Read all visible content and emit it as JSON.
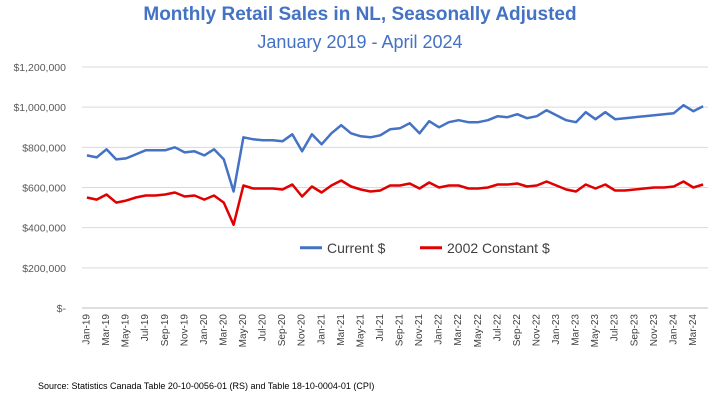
{
  "chart_data": {
    "type": "line",
    "title": "Monthly Retail Sales in NL, Seasonally Adjusted",
    "subtitle": "January 2019 - April 2024",
    "xlabel": "",
    "ylabel": "",
    "ylim": [
      0,
      1200000
    ],
    "yticks": [
      "$-",
      "$200,000",
      "$400,000",
      "$600,000",
      "$800,000",
      "$1,000,000",
      "$1,200,000"
    ],
    "xtick_labels": [
      "Jan-19",
      "Mar-19",
      "May-19",
      "Jul-19",
      "Sep-19",
      "Nov-19",
      "Jan-20",
      "Mar-20",
      "May-20",
      "Jul-20",
      "Sep-20",
      "Nov-20",
      "Jan-21",
      "Mar-21",
      "May-21",
      "Jul-21",
      "Sep-21",
      "Nov-21",
      "Jan-22",
      "Mar-22",
      "May-22",
      "Jul-22",
      "Sep-22",
      "Nov-22",
      "Jan-23",
      "Mar-23",
      "May-23",
      "Jul-23",
      "Sep-23",
      "Nov-23",
      "Jan-24",
      "Mar-24"
    ],
    "grid": true,
    "legend_position": "center",
    "series": [
      {
        "name": "Current $",
        "color": "#4472C4",
        "values": [
          760000,
          750000,
          790000,
          740000,
          745000,
          765000,
          785000,
          785000,
          785000,
          800000,
          775000,
          780000,
          760000,
          790000,
          740000,
          580000,
          850000,
          840000,
          835000,
          835000,
          830000,
          865000,
          780000,
          865000,
          815000,
          870000,
          910000,
          870000,
          855000,
          850000,
          860000,
          890000,
          895000,
          920000,
          870000,
          930000,
          900000,
          925000,
          935000,
          925000,
          925000,
          935000,
          955000,
          950000,
          965000,
          945000,
          955000,
          985000,
          960000,
          935000,
          925000,
          975000,
          940000,
          975000,
          940000,
          945000,
          950000,
          955000,
          960000,
          965000,
          970000,
          1010000,
          980000,
          1005000
        ]
      },
      {
        "name": "2002 Constant $",
        "color": "#E00000",
        "values": [
          550000,
          540000,
          565000,
          525000,
          535000,
          550000,
          560000,
          560000,
          565000,
          575000,
          555000,
          560000,
          540000,
          560000,
          525000,
          415000,
          610000,
          595000,
          595000,
          595000,
          590000,
          615000,
          555000,
          605000,
          575000,
          610000,
          635000,
          605000,
          590000,
          580000,
          585000,
          610000,
          610000,
          620000,
          595000,
          625000,
          600000,
          610000,
          610000,
          595000,
          595000,
          600000,
          615000,
          615000,
          620000,
          605000,
          610000,
          630000,
          610000,
          590000,
          580000,
          615000,
          595000,
          615000,
          585000,
          585000,
          590000,
          595000,
          600000,
          600000,
          605000,
          630000,
          600000,
          615000
        ]
      }
    ]
  },
  "footer": {
    "source": "Source:  Statistics Canada Table 20-10-0056-01 (RS) and Table 18-10-0004-01 (CPI)"
  }
}
